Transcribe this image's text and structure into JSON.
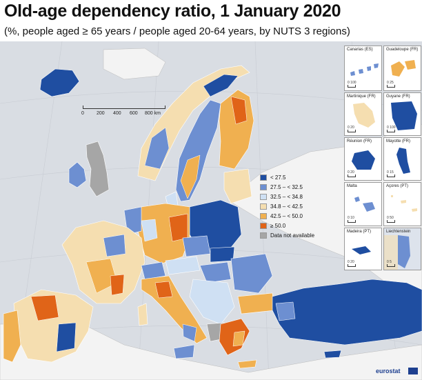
{
  "title": "Old-age dependency ratio, 1 January 2020",
  "subtitle": "(%, people aged ≥ 65 years / people aged 20-64 years, by NUTS 3 regions)",
  "scale": {
    "labels": [
      "0",
      "200",
      "400",
      "600",
      "800 km"
    ]
  },
  "legend": [
    {
      "label": "< 27.5",
      "color": "#1f4ea1"
    },
    {
      "label": "27.5 – < 32.5",
      "color": "#6d8fd1"
    },
    {
      "label": "32.5 – < 34.8",
      "color": "#cfe0f3"
    },
    {
      "label": "34.8 – < 42.5",
      "color": "#f5deb0"
    },
    {
      "label": "42.5 – < 50.0",
      "color": "#f0b050"
    },
    {
      "label": "≥ 50.0",
      "color": "#e06418"
    },
    {
      "label": "Data not available",
      "color": "#a6a6a6"
    }
  ],
  "insets": [
    {
      "name": "Canarias (ES)",
      "scale": "0  100"
    },
    {
      "name": "Guadeloupe (FR)",
      "scale": "0  25"
    },
    {
      "name": "Martinique (FR)",
      "scale": "0  20"
    },
    {
      "name": "Guyane (FR)",
      "scale": "0  100"
    },
    {
      "name": "Réunion (FR)",
      "scale": "0  20"
    },
    {
      "name": "Mayotte (FR)",
      "scale": "0  15"
    },
    {
      "name": "Malta",
      "scale": "0  10"
    },
    {
      "name": "Açores (PT)",
      "scale": "0  50"
    },
    {
      "name": "Madeira (PT)",
      "scale": "0  20"
    },
    {
      "name": "Liechtenstein",
      "scale": "0  5"
    }
  ],
  "source": "eurostat"
}
